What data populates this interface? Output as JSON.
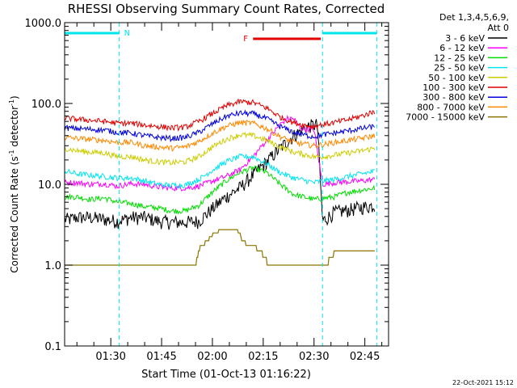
{
  "chart_data": {
    "type": "line",
    "title": "RHESSI Observing Summary Count Rates, Corrected",
    "xlabel": "Start Time (01-Oct-13 01:16:22)",
    "ylabel_main": "Corrected Count Rate (s",
    "ylabel_sup1": "-1",
    "ylabel_mid": " detector",
    "ylabel_sup2": "-1",
    "ylabel_end": ")",
    "yscale": "log",
    "ylim": [
      0.1,
      1000
    ],
    "xlim_minutes": [
      76.37,
      172
    ],
    "x_ticks": [
      "01:30",
      "01:45",
      "02:00",
      "02:15",
      "02:30",
      "02:45"
    ],
    "x_tick_minutes": [
      90,
      105,
      120,
      135,
      150,
      165
    ],
    "y_ticks": [
      "0.1",
      "1.0",
      "10.0",
      "100.0",
      "1000.0"
    ],
    "y_tick_values": [
      0.1,
      1,
      10,
      100,
      1000
    ],
    "legend_header": [
      "Det 1,3,4,5,6,9,",
      "Att 0"
    ],
    "legend_placement": "right",
    "timestamp": "22-Oct-2021 15:12",
    "annotations": {
      "night_label": "N",
      "flare_label": "F",
      "night_intervals": [
        [
          76.37,
          92.5
        ],
        [
          152.5,
          168.5
        ]
      ],
      "flare_interval": [
        132,
        152
      ],
      "night_color": "#00e5ee",
      "flare_color": "#e00000"
    },
    "series": [
      {
        "name": "3 - 6 keV",
        "color": "#000000",
        "points": [
          [
            76.4,
            3.7
          ],
          [
            78,
            3.7
          ],
          [
            80,
            3.9
          ],
          [
            84,
            3.9
          ],
          [
            88,
            3.7
          ],
          [
            92,
            3.5
          ],
          [
            96,
            3.9
          ],
          [
            100,
            3.9
          ],
          [
            104,
            3.5
          ],
          [
            108,
            3.4
          ],
          [
            112,
            3.4
          ],
          [
            116,
            3.5
          ],
          [
            120,
            5
          ],
          [
            124,
            7
          ],
          [
            128,
            9
          ],
          [
            132,
            13
          ],
          [
            136,
            19
          ],
          [
            140,
            28
          ],
          [
            144,
            40
          ],
          [
            148,
            52
          ],
          [
            151,
            55
          ],
          [
            152.5,
            3.5
          ],
          [
            156,
            4.5
          ],
          [
            160,
            4.8
          ],
          [
            164,
            5.2
          ],
          [
            168,
            5.5
          ]
        ]
      },
      {
        "name": "6 - 12 keV",
        "color": "#ff00ff",
        "points": [
          [
            76.4,
            10.5
          ],
          [
            80,
            10.5
          ],
          [
            84,
            10
          ],
          [
            88,
            10.2
          ],
          [
            92,
            9.5
          ],
          [
            96,
            10.2
          ],
          [
            100,
            10
          ],
          [
            104,
            9.3
          ],
          [
            108,
            9
          ],
          [
            112,
            9
          ],
          [
            116,
            9.5
          ],
          [
            120,
            11
          ],
          [
            124,
            12.5
          ],
          [
            128,
            15
          ],
          [
            132,
            22
          ],
          [
            136,
            35
          ],
          [
            140,
            55
          ],
          [
            142,
            65
          ],
          [
            144,
            65
          ],
          [
            146,
            50
          ],
          [
            148,
            48
          ],
          [
            150,
            48
          ],
          [
            152.5,
            10
          ],
          [
            156,
            10.5
          ],
          [
            160,
            10.8
          ],
          [
            164,
            11
          ],
          [
            168,
            11.5
          ]
        ]
      },
      {
        "name": "12 - 25 keV",
        "color": "#00dd00",
        "points": [
          [
            76.4,
            7
          ],
          [
            80,
            7
          ],
          [
            84,
            6.5
          ],
          [
            88,
            6.8
          ],
          [
            92,
            6
          ],
          [
            96,
            5.8
          ],
          [
            100,
            5.3
          ],
          [
            104,
            5.1
          ],
          [
            108,
            4.7
          ],
          [
            112,
            4.7
          ],
          [
            116,
            5.5
          ],
          [
            120,
            8
          ],
          [
            124,
            11
          ],
          [
            128,
            14
          ],
          [
            132,
            16
          ],
          [
            136,
            14
          ],
          [
            140,
            10
          ],
          [
            144,
            7.5
          ],
          [
            148,
            6.8
          ],
          [
            150,
            6.5
          ],
          [
            152.5,
            6.7
          ],
          [
            156,
            7
          ],
          [
            160,
            8
          ],
          [
            164,
            8.5
          ],
          [
            168,
            9
          ]
        ]
      },
      {
        "name": "25 - 50 keV",
        "color": "#00e5ee",
        "points": [
          [
            76.4,
            14.5
          ],
          [
            80,
            13.5
          ],
          [
            84,
            13
          ],
          [
            88,
            12.5
          ],
          [
            92,
            12
          ],
          [
            96,
            12
          ],
          [
            100,
            11
          ],
          [
            104,
            10
          ],
          [
            108,
            9.7
          ],
          [
            112,
            9.8
          ],
          [
            116,
            11.5
          ],
          [
            120,
            15
          ],
          [
            124,
            19
          ],
          [
            128,
            22
          ],
          [
            132,
            22
          ],
          [
            136,
            18
          ],
          [
            140,
            14
          ],
          [
            144,
            12
          ],
          [
            148,
            11
          ],
          [
            150,
            10.5
          ],
          [
            152.5,
            11
          ],
          [
            156,
            11.5
          ],
          [
            160,
            12.5
          ],
          [
            164,
            13.5
          ],
          [
            168,
            14.5
          ]
        ]
      },
      {
        "name": "50 - 100 keV",
        "color": "#cccc00",
        "points": [
          [
            76.4,
            28
          ],
          [
            80,
            26
          ],
          [
            84,
            25
          ],
          [
            88,
            24.5
          ],
          [
            92,
            22
          ],
          [
            96,
            22
          ],
          [
            100,
            20
          ],
          [
            104,
            19
          ],
          [
            108,
            18.5
          ],
          [
            112,
            19
          ],
          [
            116,
            22
          ],
          [
            120,
            29
          ],
          [
            124,
            36
          ],
          [
            128,
            41
          ],
          [
            132,
            40
          ],
          [
            136,
            35
          ],
          [
            140,
            29
          ],
          [
            144,
            25
          ],
          [
            148,
            23
          ],
          [
            150,
            22
          ],
          [
            152.5,
            22
          ],
          [
            156,
            23
          ],
          [
            160,
            24.5
          ],
          [
            164,
            26
          ],
          [
            168,
            28
          ]
        ]
      },
      {
        "name": "100 - 300 keV",
        "color": "#e00000",
        "points": [
          [
            76.4,
            66
          ],
          [
            80,
            64
          ],
          [
            84,
            62
          ],
          [
            88,
            60
          ],
          [
            92,
            57
          ],
          [
            96,
            57
          ],
          [
            100,
            54
          ],
          [
            104,
            52
          ],
          [
            108,
            50
          ],
          [
            112,
            51
          ],
          [
            116,
            60
          ],
          [
            120,
            75
          ],
          [
            124,
            93
          ],
          [
            128,
            105
          ],
          [
            132,
            103
          ],
          [
            136,
            88
          ],
          [
            140,
            68
          ],
          [
            144,
            58
          ],
          [
            148,
            53
          ],
          [
            150,
            52
          ],
          [
            152.5,
            55
          ],
          [
            156,
            58
          ],
          [
            160,
            63
          ],
          [
            164,
            70
          ],
          [
            168,
            80
          ]
        ]
      },
      {
        "name": "300 - 800 keV",
        "color": "#0000dd",
        "points": [
          [
            76.4,
            50
          ],
          [
            80,
            49
          ],
          [
            84,
            48
          ],
          [
            88,
            47
          ],
          [
            92,
            44
          ],
          [
            96,
            43
          ],
          [
            100,
            40
          ],
          [
            104,
            38
          ],
          [
            108,
            37
          ],
          [
            112,
            38
          ],
          [
            116,
            44
          ],
          [
            120,
            56
          ],
          [
            124,
            69
          ],
          [
            128,
            76
          ],
          [
            132,
            75
          ],
          [
            136,
            65
          ],
          [
            140,
            52
          ],
          [
            144,
            44
          ],
          [
            148,
            40
          ],
          [
            150,
            39
          ],
          [
            152.5,
            41
          ],
          [
            156,
            43
          ],
          [
            160,
            46
          ],
          [
            164,
            49
          ],
          [
            168,
            52
          ]
        ]
      },
      {
        "name": "800 - 7000 keV",
        "color": "#ff8800",
        "points": [
          [
            76.4,
            38
          ],
          [
            80,
            37
          ],
          [
            84,
            36
          ],
          [
            88,
            35
          ],
          [
            92,
            33
          ],
          [
            96,
            33
          ],
          [
            100,
            30
          ],
          [
            104,
            29
          ],
          [
            108,
            28
          ],
          [
            112,
            29
          ],
          [
            116,
            34
          ],
          [
            120,
            43
          ],
          [
            124,
            52
          ],
          [
            128,
            58
          ],
          [
            132,
            57
          ],
          [
            136,
            49
          ],
          [
            140,
            39
          ],
          [
            144,
            33
          ],
          [
            148,
            31
          ],
          [
            150,
            30
          ],
          [
            152.5,
            31
          ],
          [
            156,
            33
          ],
          [
            160,
            35
          ],
          [
            164,
            37
          ],
          [
            168,
            40
          ]
        ]
      },
      {
        "name": "7000 - 15000 keV",
        "color": "#8b7500",
        "points": [
          [
            76.4,
            1
          ],
          [
            80,
            1
          ],
          [
            84,
            1
          ],
          [
            88,
            1
          ],
          [
            92,
            1
          ],
          [
            96,
            1
          ],
          [
            100,
            1
          ],
          [
            104,
            1
          ],
          [
            108,
            1
          ],
          [
            112,
            1
          ],
          [
            115,
            1
          ],
          [
            116,
            1.6
          ],
          [
            118,
            1.9
          ],
          [
            121,
            2.6
          ],
          [
            124,
            2.7
          ],
          [
            126,
            2.7
          ],
          [
            128,
            2.6
          ],
          [
            129,
            1.9
          ],
          [
            132,
            1.8
          ],
          [
            134,
            1.5
          ],
          [
            136,
            1.2
          ],
          [
            138,
            1
          ],
          [
            140,
            1
          ],
          [
            144,
            1
          ],
          [
            148,
            1
          ],
          [
            151,
            1
          ],
          [
            152.5,
            1
          ],
          [
            156,
            1.4
          ],
          [
            160,
            1.5
          ],
          [
            164,
            1.5
          ],
          [
            168,
            1.5
          ]
        ]
      }
    ]
  }
}
